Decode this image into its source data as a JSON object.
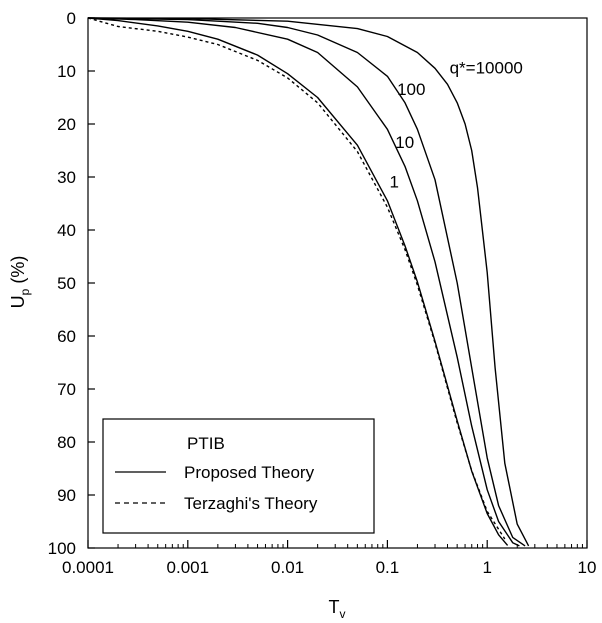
{
  "chart_data": {
    "type": "line",
    "xlabel_main": "T",
    "xlabel_sub": "v",
    "ylabel_main": "U",
    "ylabel_sub": "p",
    "ylabel_rest": " (%)",
    "x_scale": "log",
    "xlim": [
      0.0001,
      10
    ],
    "ylim": [
      0,
      100
    ],
    "y_inverted": true,
    "grid": false,
    "x_ticks": [
      {
        "value": 0.0001,
        "label": "0.0001"
      },
      {
        "value": 0.001,
        "label": "0.001"
      },
      {
        "value": 0.01,
        "label": "0.01"
      },
      {
        "value": 0.1,
        "label": "0.1"
      },
      {
        "value": 1,
        "label": "1"
      },
      {
        "value": 10,
        "label": "10"
      }
    ],
    "y_ticks": [
      {
        "value": 0,
        "label": "0"
      },
      {
        "value": 10,
        "label": "10"
      },
      {
        "value": 20,
        "label": "20"
      },
      {
        "value": 30,
        "label": "30"
      },
      {
        "value": 40,
        "label": "40"
      },
      {
        "value": 50,
        "label": "50"
      },
      {
        "value": 60,
        "label": "60"
      },
      {
        "value": 70,
        "label": "70"
      },
      {
        "value": 80,
        "label": "80"
      },
      {
        "value": 90,
        "label": "90"
      },
      {
        "value": 100,
        "label": "100"
      }
    ],
    "legend": {
      "placement": "bottom-left",
      "title": "PTIB",
      "entries": [
        {
          "label": "Proposed Theory",
          "style": "solid"
        },
        {
          "label": "Terzaghi's Theory",
          "style": "dashed"
        }
      ]
    },
    "series": [
      {
        "style": "dashed",
        "x": [
          0.0001,
          0.0002,
          0.0005,
          0.001,
          0.002,
          0.005,
          0.01,
          0.02,
          0.05,
          0.1,
          0.15,
          0.2,
          0.3,
          0.5,
          0.7,
          1.0,
          1.5
        ],
        "y": [
          0,
          1.6,
          2.5,
          3.6,
          5,
          8,
          11.3,
          16,
          25.2,
          35.7,
          43.7,
          50.4,
          61.3,
          76.4,
          85.4,
          93.1,
          98.3
        ]
      },
      {
        "style": "solid",
        "annotation": "1",
        "x": [
          0.0001,
          0.0002,
          0.0005,
          0.001,
          0.002,
          0.005,
          0.01,
          0.02,
          0.05,
          0.1,
          0.15,
          0.2,
          0.3,
          0.5,
          0.7,
          1.0,
          1.3,
          1.6
        ],
        "y": [
          0,
          0.5,
          1.5,
          2.5,
          4,
          7,
          10.5,
          15,
          24,
          34.5,
          43,
          49.8,
          61,
          76,
          85.5,
          93.5,
          97.5,
          99.5
        ]
      },
      {
        "style": "solid",
        "annotation": "10",
        "x": [
          0.0001,
          0.0003,
          0.001,
          0.003,
          0.01,
          0.02,
          0.05,
          0.1,
          0.15,
          0.2,
          0.3,
          0.5,
          0.7,
          1.0,
          1.3,
          1.8,
          2.1
        ],
        "y": [
          0,
          0.3,
          0.8,
          1.8,
          4,
          6.5,
          13,
          21,
          28,
          34.5,
          46,
          64,
          77,
          89,
          95,
          99,
          99.6
        ]
      },
      {
        "style": "solid",
        "annotation": "100",
        "x": [
          0.0001,
          0.001,
          0.005,
          0.01,
          0.02,
          0.05,
          0.1,
          0.15,
          0.2,
          0.3,
          0.5,
          0.7,
          1.0,
          1.3,
          1.8,
          2.4
        ],
        "y": [
          0,
          0.3,
          1,
          1.8,
          3.2,
          6.5,
          11,
          16,
          21,
          30.5,
          50,
          66,
          83,
          92,
          98,
          99.6
        ]
      },
      {
        "style": "solid",
        "annotation": "q*=10000",
        "x": [
          0.0001,
          0.001,
          0.01,
          0.05,
          0.1,
          0.2,
          0.3,
          0.4,
          0.5,
          0.6,
          0.7,
          0.8,
          1.0,
          1.2,
          1.5,
          2.0,
          2.6
        ],
        "y": [
          0,
          0.1,
          0.6,
          2,
          3.5,
          6.5,
          9.5,
          12.5,
          16,
          20,
          25,
          32,
          48,
          66,
          84,
          95.5,
          99.6
        ]
      }
    ],
    "annotations": [
      {
        "text": "q*=10000",
        "x": 0.42,
        "y": 10.5
      },
      {
        "text": "100",
        "x": 0.125,
        "y": 14.5
      },
      {
        "text": "10",
        "x": 0.12,
        "y": 24.5
      },
      {
        "text": "1",
        "x": 0.105,
        "y": 32
      }
    ]
  }
}
